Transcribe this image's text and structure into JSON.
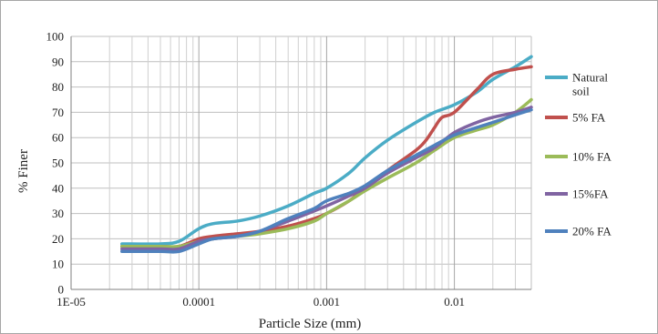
{
  "chart_data": {
    "type": "line",
    "title": "",
    "xlabel": "Particle Size (mm)",
    "ylabel": "% Finer",
    "x_scale": "log",
    "xlim": [
      1e-05,
      0.04
    ],
    "ylim": [
      0,
      100
    ],
    "x_ticks": [
      {
        "value": 1e-05,
        "label": "1E-05"
      },
      {
        "value": 0.0001,
        "label": "0.0001"
      },
      {
        "value": 0.001,
        "label": "0.001"
      },
      {
        "value": 0.01,
        "label": "0.01"
      }
    ],
    "y_ticks": [
      0,
      10,
      20,
      30,
      40,
      50,
      60,
      70,
      80,
      90,
      100
    ],
    "grid": true,
    "legend_position": "right",
    "series": [
      {
        "name": "Natural soil",
        "color": "#4bacc6",
        "x": [
          2.5e-05,
          5e-05,
          7e-05,
          0.0001,
          0.00013,
          0.0002,
          0.0003,
          0.0005,
          0.0008,
          0.001,
          0.0015,
          0.002,
          0.003,
          0.005,
          0.007,
          0.01,
          0.015,
          0.02,
          0.03,
          0.04
        ],
        "y": [
          18,
          18,
          19,
          24,
          26,
          27,
          29,
          33,
          38,
          40,
          46,
          52,
          59,
          66,
          70,
          73,
          78,
          83,
          88,
          92
        ]
      },
      {
        "name": "5% FA",
        "color": "#c0504d",
        "x": [
          2.5e-05,
          5e-05,
          7e-05,
          0.0001,
          0.00013,
          0.0002,
          0.0003,
          0.0005,
          0.0008,
          0.001,
          0.0015,
          0.002,
          0.003,
          0.005,
          0.006,
          0.007,
          0.008,
          0.01,
          0.015,
          0.02,
          0.03,
          0.04
        ],
        "y": [
          17,
          17,
          17,
          20,
          21,
          22,
          23,
          25,
          28,
          30,
          35,
          40,
          47,
          55,
          59,
          64,
          68,
          70,
          79,
          85,
          87,
          88
        ]
      },
      {
        "name": "10% FA",
        "color": "#9bbb59",
        "x": [
          2.5e-05,
          5e-05,
          7e-05,
          0.0001,
          0.00013,
          0.0002,
          0.0003,
          0.0005,
          0.0008,
          0.001,
          0.0015,
          0.002,
          0.003,
          0.005,
          0.007,
          0.01,
          0.015,
          0.02,
          0.03,
          0.04
        ],
        "y": [
          17,
          17,
          17,
          19,
          20,
          21,
          22,
          24,
          27,
          30,
          35,
          39,
          44,
          50,
          55,
          60,
          63,
          65,
          70,
          75
        ]
      },
      {
        "name": "15%FA",
        "color": "#8064a2",
        "x": [
          2.5e-05,
          5e-05,
          7e-05,
          0.0001,
          0.00013,
          0.0002,
          0.0003,
          0.0005,
          0.0008,
          0.001,
          0.0015,
          0.002,
          0.003,
          0.005,
          0.007,
          0.01,
          0.015,
          0.02,
          0.03,
          0.04
        ],
        "y": [
          16,
          16,
          16,
          19,
          20,
          21,
          23,
          27,
          31,
          33,
          37,
          40,
          46,
          52,
          56,
          62,
          66,
          68,
          70,
          72
        ]
      },
      {
        "name": "20% FA",
        "color": "#4f81bd",
        "x": [
          2.5e-05,
          5e-05,
          7e-05,
          0.0001,
          0.00013,
          0.0002,
          0.0003,
          0.0005,
          0.0008,
          0.001,
          0.0015,
          0.002,
          0.003,
          0.005,
          0.007,
          0.01,
          0.015,
          0.02,
          0.03,
          0.04
        ],
        "y": [
          15,
          15,
          15,
          18,
          20,
          21,
          23,
          28,
          32,
          35,
          38,
          41,
          47,
          53,
          57,
          61,
          64,
          66,
          69,
          71
        ]
      }
    ]
  }
}
